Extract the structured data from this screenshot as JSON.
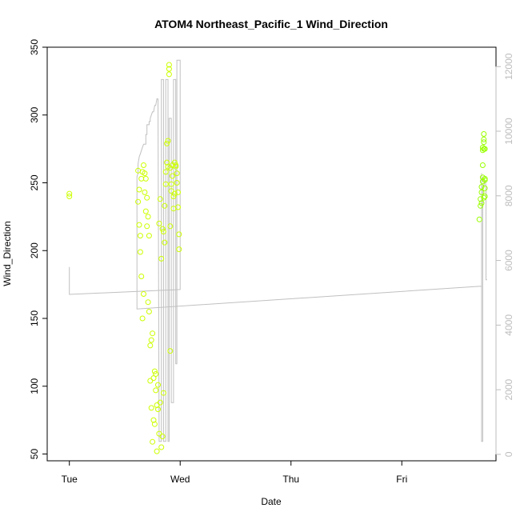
{
  "chart_data": {
    "type": "scatter",
    "title": "ATOM4 Northeast_Pacific_1 Wind_Direction",
    "xlabel": "Date",
    "ylabel": "Wind_Direction",
    "x_ticks": [
      {
        "day": 0,
        "label": "Tue"
      },
      {
        "day": 1,
        "label": "Wed"
      },
      {
        "day": 2,
        "label": "Thu"
      },
      {
        "day": 3,
        "label": "Fri"
      }
    ],
    "xlim_days": [
      -0.2,
      3.85
    ],
    "ylim": [
      45,
      350
    ],
    "y_ticks": [
      50,
      100,
      150,
      200,
      250,
      300,
      350
    ],
    "y2lim": [
      -200,
      12600
    ],
    "y2_ticks": [
      0,
      2000,
      4000,
      6000,
      8000,
      10000,
      12000
    ],
    "colors": {
      "points": "#ccff00",
      "points_late": "#99ff00",
      "line": "#c0c0c0",
      "axis": "#000000",
      "right_axis": "#bdbdbd"
    },
    "series": [
      {
        "type": "points",
        "x_days": [
          0.0,
          0.0,
          0.62,
          0.62,
          0.63,
          0.63,
          0.64,
          0.64,
          0.65,
          0.65,
          0.66,
          0.66,
          0.67,
          0.67,
          0.68,
          0.68,
          0.69,
          0.69,
          0.7,
          0.7,
          0.71,
          0.71,
          0.72,
          0.72,
          0.73,
          0.73,
          0.74,
          0.74,
          0.75,
          0.75,
          0.76,
          0.76,
          0.77,
          0.77,
          0.78,
          0.78,
          0.79,
          0.79,
          0.8,
          0.8,
          0.81,
          0.81,
          0.82,
          0.82,
          0.83,
          0.83,
          0.84,
          0.84,
          0.85,
          0.85,
          0.86,
          0.86,
          0.87,
          0.87,
          0.88,
          0.88,
          0.89,
          0.89,
          0.9,
          0.9,
          0.9,
          0.91,
          0.91,
          0.91,
          0.92,
          0.92,
          0.93,
          0.93,
          0.94,
          0.94,
          0.95,
          0.95,
          0.96,
          0.96,
          0.97,
          0.97,
          0.98,
          0.98,
          0.99,
          0.99
        ],
        "values": [
          242,
          240,
          259,
          236,
          245,
          219,
          211,
          199,
          253,
          181,
          258,
          150,
          263,
          168,
          257,
          243,
          253,
          229,
          239,
          218,
          225,
          162,
          211,
          155,
          130,
          104,
          84,
          134,
          139,
          59,
          106,
          75,
          111,
          72,
          109,
          97,
          86,
          52,
          101,
          83,
          220,
          65,
          238,
          88,
          194,
          55,
          216,
          63,
          214,
          95,
          206,
          233,
          249,
          258,
          265,
          279,
          262,
          281,
          337,
          334,
          330,
          261,
          126,
          218,
          244,
          249,
          263,
          255,
          231,
          240,
          265,
          242,
          263,
          262,
          250,
          257,
          232,
          243,
          212,
          201
        ]
      },
      {
        "type": "points",
        "x_days": [
          3.7,
          3.71,
          3.71,
          3.72,
          3.72,
          3.72,
          3.73,
          3.73,
          3.73,
          3.73,
          3.73,
          3.74,
          3.74,
          3.74,
          3.74,
          3.74,
          3.75,
          3.75,
          3.75,
          3.75,
          3.75
        ],
        "values": [
          223,
          233,
          238,
          235,
          243,
          247,
          251,
          254,
          263,
          274,
          276,
          275,
          282,
          280,
          286,
          239,
          240,
          246,
          252,
          253,
          275
        ]
      },
      {
        "type": "line",
        "x_days": [
          0.0,
          0.0,
          0.0,
          0.0,
          0.0,
          1.0,
          1.0,
          1.0,
          0.97,
          0.97,
          0.96,
          0.96,
          0.94,
          0.94,
          0.92,
          0.92,
          0.9,
          0.9,
          0.89,
          0.89,
          0.87,
          0.87,
          0.85,
          0.85,
          0.83,
          0.83,
          0.81,
          0.8,
          0.79,
          0.78,
          0.77,
          0.76,
          0.75,
          0.74,
          0.73,
          0.73,
          0.72,
          0.72,
          0.7,
          0.7,
          0.69,
          0.69,
          0.67,
          0.66,
          0.64,
          0.63,
          0.62,
          0.62,
          0.61,
          0.61,
          0.61,
          3.7,
          3.72,
          3.72,
          3.72,
          3.73,
          3.73,
          3.73,
          3.74,
          3.75,
          3.76,
          3.76,
          3.77
        ],
        "y2": [
          5800,
          5800,
          5200,
          4950,
          4950,
          5100,
          6600,
          12200,
          12200,
          2800,
          2800,
          11600,
          11600,
          1600,
          1600,
          10400,
          10400,
          400,
          400,
          11600,
          11600,
          400,
          400,
          11600,
          11600,
          400,
          400,
          11000,
          11000,
          10800,
          10800,
          10600,
          10600,
          10500,
          10400,
          10300,
          10300,
          10200,
          10200,
          9900,
          9900,
          9600,
          9600,
          9500,
          9300,
          9200,
          9000,
          8700,
          8600,
          8300,
          4500,
          5200,
          5200,
          8700,
          400,
          400,
          8000,
          8300,
          8300,
          8500,
          8300,
          5400,
          5400
        ]
      }
    ]
  }
}
